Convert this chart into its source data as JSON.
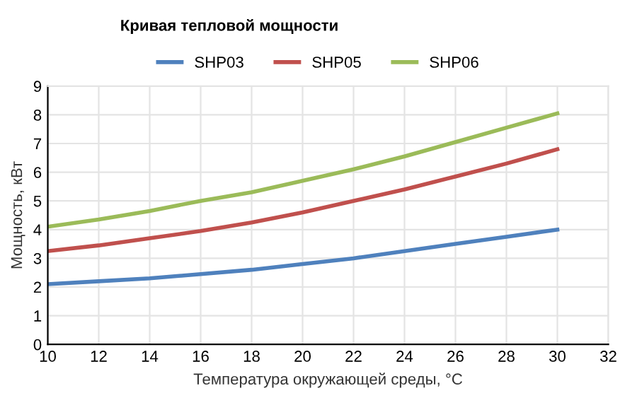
{
  "chart_data": {
    "type": "line",
    "title": "Кривая тепловой мощности",
    "xlabel": "Температура окружающей среды, °C",
    "ylabel": "Мощность, кВт",
    "x": [
      10,
      12,
      14,
      16,
      18,
      20,
      22,
      24,
      26,
      28,
      30
    ],
    "series": [
      {
        "name": "SHP03",
        "color": "#4f81bd",
        "values": [
          2.1,
          2.2,
          2.3,
          2.45,
          2.6,
          2.8,
          3.0,
          3.25,
          3.5,
          3.75,
          4.0
        ]
      },
      {
        "name": "SHP05",
        "color": "#c0504d",
        "values": [
          3.25,
          3.45,
          3.7,
          3.95,
          4.25,
          4.6,
          5.0,
          5.4,
          5.85,
          6.3,
          6.8
        ]
      },
      {
        "name": "SHP06",
        "color": "#9bbb59",
        "values": [
          4.1,
          4.35,
          4.65,
          5.0,
          5.3,
          5.7,
          6.1,
          6.55,
          7.05,
          7.55,
          8.05
        ]
      }
    ],
    "xlim": [
      10,
      32
    ],
    "xticks": [
      10,
      12,
      14,
      16,
      18,
      20,
      22,
      24,
      26,
      28,
      30,
      32
    ],
    "ylim": [
      0,
      9
    ],
    "yticks": [
      0,
      1,
      2,
      3,
      4,
      5,
      6,
      7,
      8,
      9
    ],
    "grid": true,
    "legend": "top",
    "marker": "none",
    "line_style": "solid"
  }
}
